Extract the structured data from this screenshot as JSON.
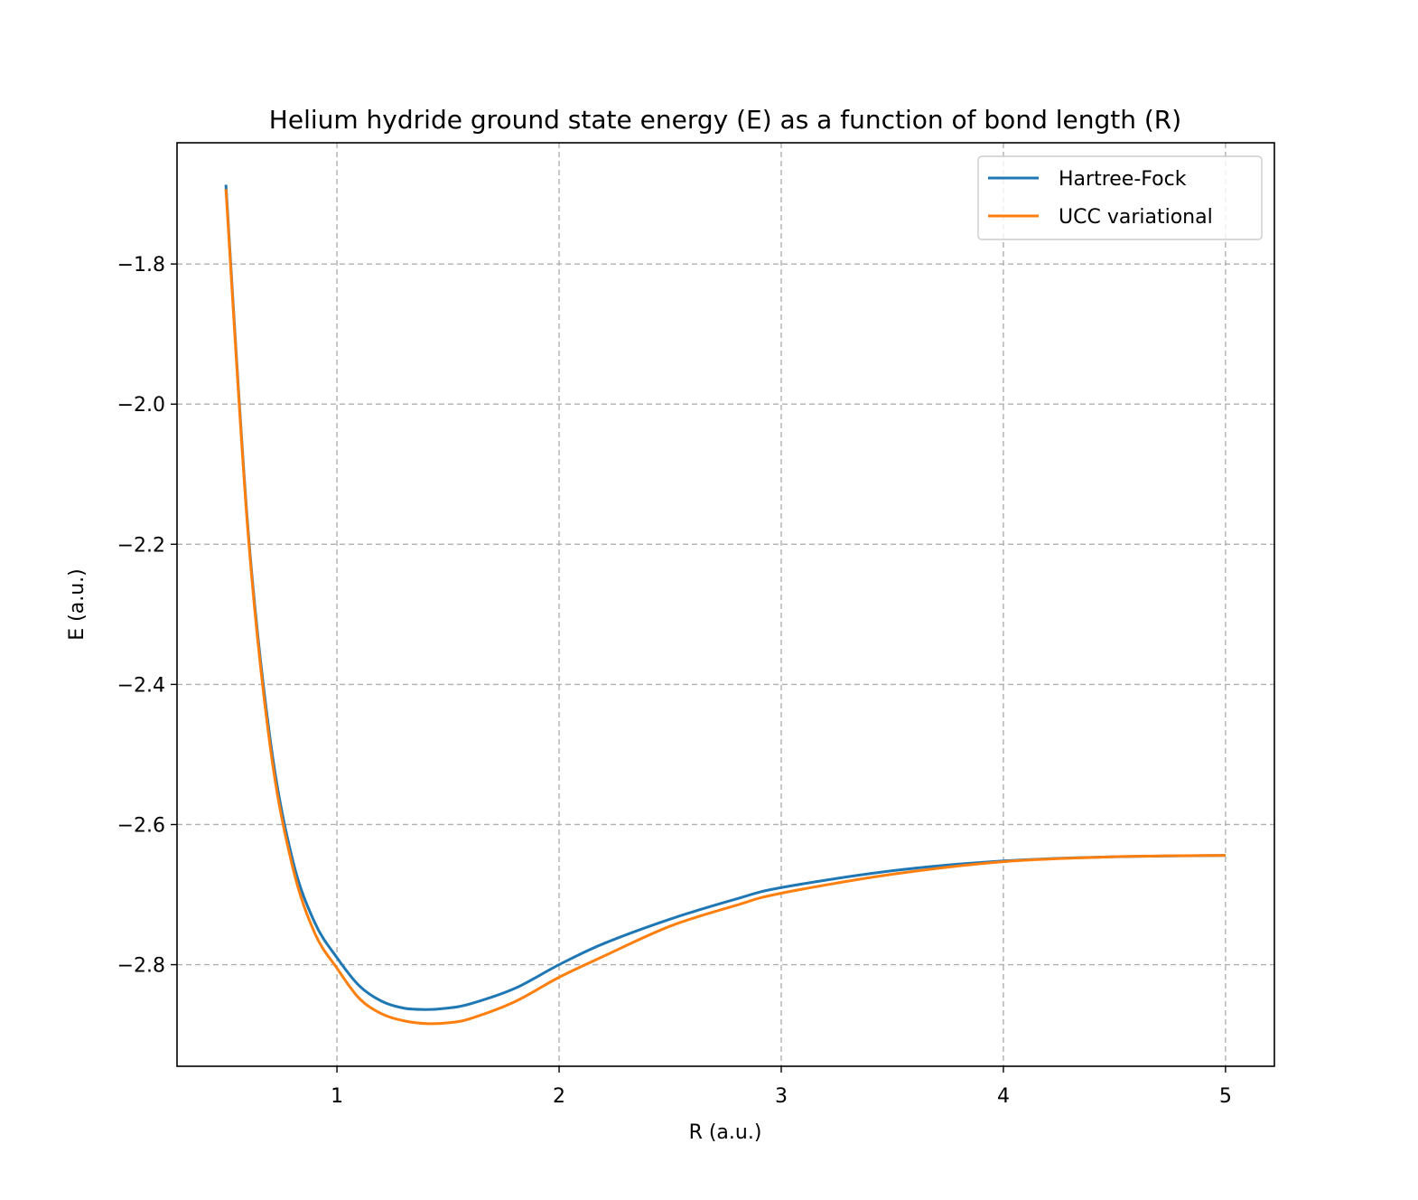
{
  "chart_data": {
    "type": "line",
    "title": "Helium hydride ground state energy (E) as a function of bond length (R)",
    "xlabel": "R (a.u.)",
    "ylabel": "E (a.u.)",
    "xlim": [
      0.28,
      5.22
    ],
    "ylim": [
      -2.945,
      -1.627
    ],
    "xticks": [
      1,
      2,
      3,
      4,
      5
    ],
    "xtick_labels": [
      "1",
      "2",
      "3",
      "4",
      "5"
    ],
    "yticks": [
      -2.8,
      -2.6,
      -2.4,
      -2.2,
      -2.0,
      -1.8
    ],
    "ytick_labels": [
      "−2.8",
      "−2.6",
      "−2.4",
      "−2.2",
      "−2.0",
      "−1.8"
    ],
    "grid": true,
    "legend_position": "upper right",
    "x": [
      0.5,
      0.6,
      0.7,
      0.8,
      0.9,
      1.0,
      1.1,
      1.2,
      1.3,
      1.4,
      1.5,
      1.6,
      1.8,
      2.0,
      2.2,
      2.5,
      2.8,
      3.0,
      3.5,
      4.0,
      4.5,
      5.0
    ],
    "series": [
      {
        "name": "Hartree-Fock",
        "color": "#1f77b4",
        "values": [
          -1.687,
          -2.18,
          -2.48,
          -2.65,
          -2.74,
          -2.79,
          -2.83,
          -2.852,
          -2.862,
          -2.864,
          -2.862,
          -2.856,
          -2.834,
          -2.8,
          -2.77,
          -2.735,
          -2.706,
          -2.69,
          -2.666,
          -2.652,
          -2.646,
          -2.644
        ]
      },
      {
        "name": "UCC variational",
        "color": "#ff7f0e",
        "values": [
          -1.693,
          -2.185,
          -2.49,
          -2.66,
          -2.755,
          -2.805,
          -2.848,
          -2.87,
          -2.88,
          -2.884,
          -2.883,
          -2.877,
          -2.853,
          -2.818,
          -2.788,
          -2.745,
          -2.715,
          -2.698,
          -2.671,
          -2.653,
          -2.646,
          -2.644
        ]
      }
    ]
  }
}
